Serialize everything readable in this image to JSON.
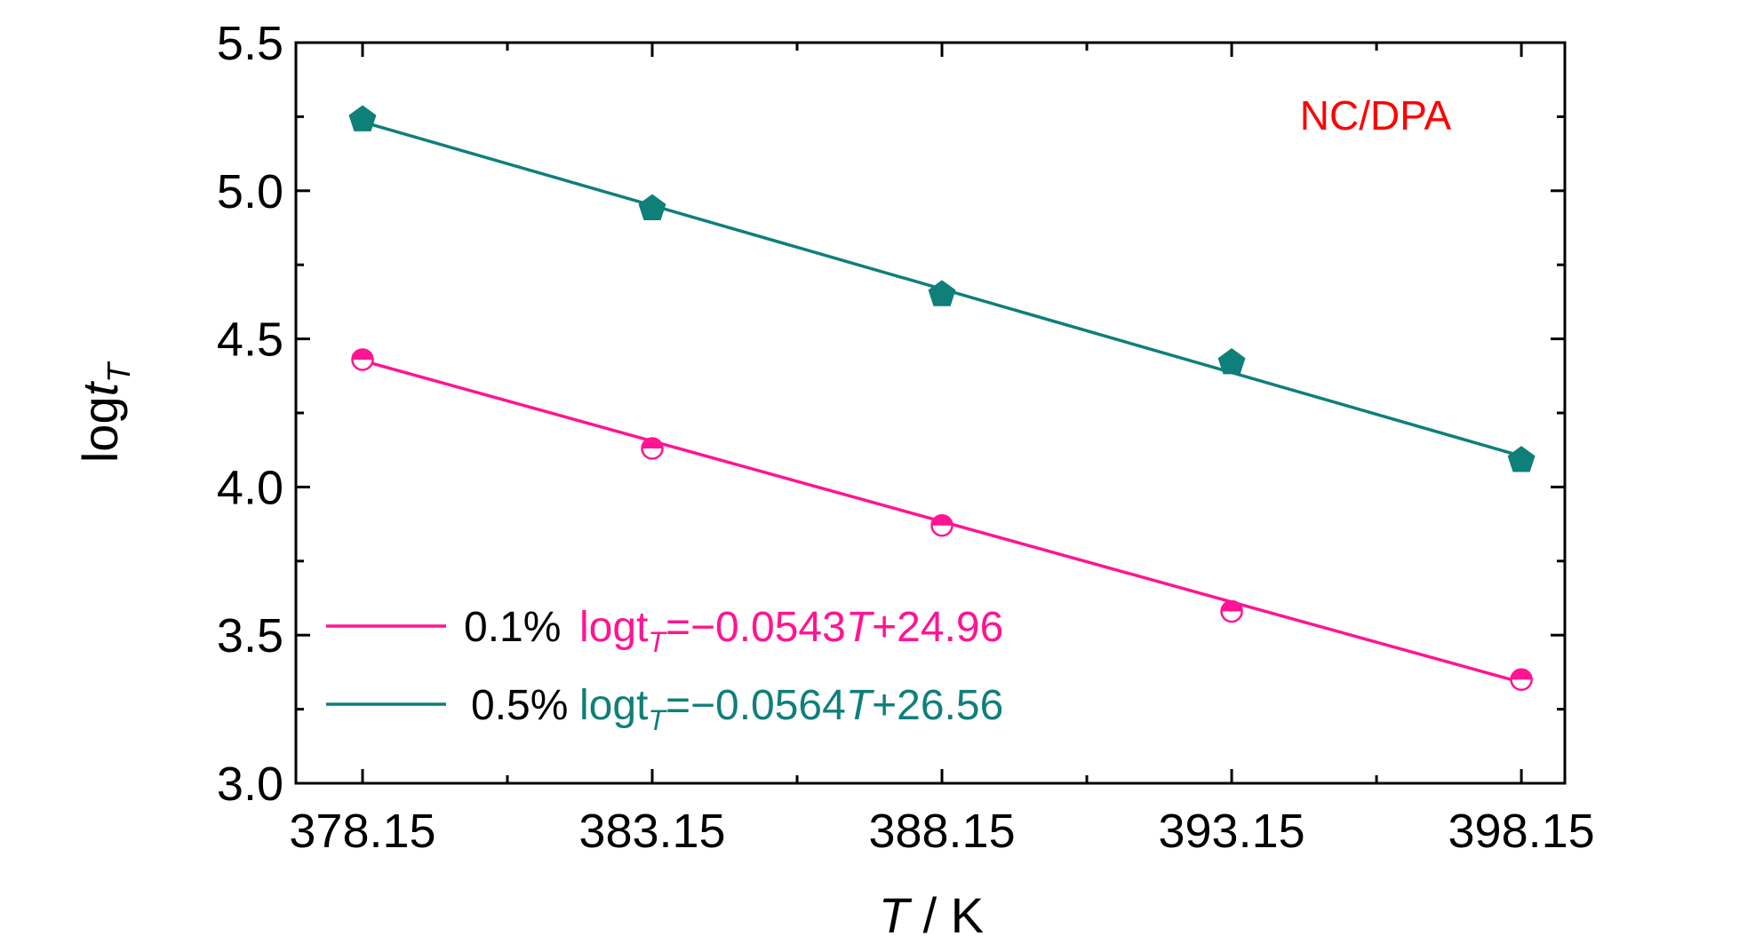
{
  "chart_data": {
    "type": "scatter",
    "xlabel": {
      "var": "T",
      "unit": " / K"
    },
    "ylabel": {
      "base": "log",
      "var": "t",
      "sub": "T"
    },
    "x_ticks": [
      "378.15",
      "383.15",
      "388.15",
      "393.15",
      "398.15"
    ],
    "y_ticks": [
      "3.0",
      "3.5",
      "4.0",
      "4.5",
      "5.0",
      "5.5"
    ],
    "xlim": [
      377,
      398.9
    ],
    "ylim": [
      3.0,
      5.5
    ],
    "annotation": {
      "text": "NC/DPA",
      "color": "#ff0000"
    },
    "series": [
      {
        "name": "0.1%",
        "color": "#ff1493",
        "marker": "half-circle",
        "x": [
          378.15,
          383.15,
          388.15,
          393.15,
          398.15
        ],
        "y": [
          4.43,
          4.13,
          3.87,
          3.58,
          3.35
        ],
        "fit": {
          "slope": -0.0543,
          "intercept": 24.96
        },
        "equation": {
          "pre": "logt",
          "sub": "T",
          "mid": "=−0.0543",
          "var": "T",
          "post": "+24.96"
        }
      },
      {
        "name": "0.5%",
        "color": "#0f7f7a",
        "marker": "pentagon",
        "x": [
          378.15,
          383.15,
          388.15,
          393.15,
          398.15
        ],
        "y": [
          5.24,
          4.94,
          4.65,
          4.42,
          4.09
        ],
        "fit": {
          "slope": -0.0564,
          "intercept": 26.56
        },
        "equation": {
          "pre": "logt",
          "sub": "T",
          "mid": "=−0.0564",
          "var": "T",
          "post": "+26.56"
        }
      }
    ]
  }
}
